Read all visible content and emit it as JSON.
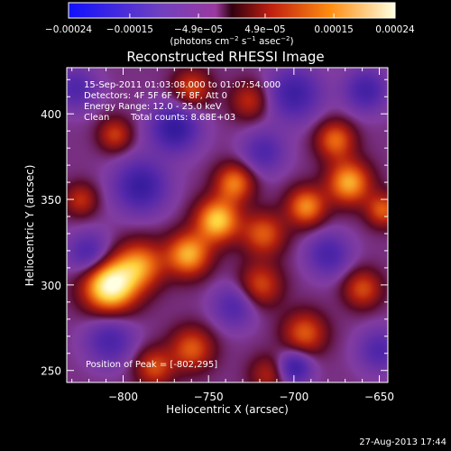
{
  "chart_data": {
    "type": "heatmap",
    "title": "Reconstructed RHESSI Image",
    "xlabel": "Heliocentric X (arcsec)",
    "ylabel": "Heliocentric Y (arcsec)",
    "xlim": [
      -833,
      -645
    ],
    "ylim": [
      243,
      427
    ],
    "xticks": [
      -800,
      -750,
      -700,
      -650
    ],
    "yticks": [
      250,
      300,
      350,
      400
    ],
    "xtick_labels": [
      "−800",
      "−750",
      "−700",
      "−650"
    ],
    "ytick_labels": [
      "250",
      "300",
      "350",
      "400"
    ],
    "colormap": [
      "#1a0a8c",
      "#5a2aa8",
      "#8a3a90",
      "#7a0a10",
      "#c0300c",
      "#f07010",
      "#ffd040",
      "#ffffe8"
    ],
    "colorbar": {
      "range": [
        -0.00024,
        0.00024
      ],
      "ticks": [
        -0.00024,
        -0.00015,
        -4.9e-05,
        4.9e-05,
        0.00015,
        0.00024
      ],
      "tick_labels": [
        "−0.00024",
        "−0.00015",
        "−4.9e−05",
        "4.9e−05",
        "0.00015",
        "0.00024"
      ],
      "unit_line1": "(photons cm",
      "unit_sup1": "−2",
      "unit_line2": " s",
      "unit_sup2": "−1",
      "unit_line3": " asec",
      "unit_sup3": "−2",
      "unit_line4": ")"
    },
    "peak_position": [
      -802,
      295
    ],
    "sources": [
      {
        "x": -808,
        "y": 300,
        "amp": 1.25,
        "sigma": 11
      },
      {
        "x": -790,
        "y": 312,
        "amp": 0.7,
        "sigma": 10
      },
      {
        "x": -762,
        "y": 318,
        "amp": 0.85,
        "sigma": 9
      },
      {
        "x": -745,
        "y": 338,
        "amp": 0.95,
        "sigma": 9
      },
      {
        "x": -735,
        "y": 360,
        "amp": 0.7,
        "sigma": 8
      },
      {
        "x": -718,
        "y": 330,
        "amp": 0.6,
        "sigma": 9
      },
      {
        "x": -693,
        "y": 346,
        "amp": 0.75,
        "sigma": 8
      },
      {
        "x": -668,
        "y": 360,
        "amp": 0.85,
        "sigma": 9
      },
      {
        "x": -648,
        "y": 344,
        "amp": 0.6,
        "sigma": 7
      },
      {
        "x": -676,
        "y": 385,
        "amp": 0.65,
        "sigma": 8
      },
      {
        "x": -720,
        "y": 300,
        "amp": 0.55,
        "sigma": 9
      },
      {
        "x": -694,
        "y": 272,
        "amp": 0.6,
        "sigma": 9
      },
      {
        "x": -760,
        "y": 263,
        "amp": 0.6,
        "sigma": 9
      },
      {
        "x": -782,
        "y": 252,
        "amp": 0.55,
        "sigma": 8
      },
      {
        "x": -715,
        "y": 248,
        "amp": 0.4,
        "sigma": 8
      },
      {
        "x": -660,
        "y": 298,
        "amp": 0.55,
        "sigma": 8
      },
      {
        "x": -760,
        "y": 415,
        "amp": 0.55,
        "sigma": 8
      },
      {
        "x": -726,
        "y": 408,
        "amp": 0.45,
        "sigma": 8
      },
      {
        "x": -805,
        "y": 388,
        "amp": 0.5,
        "sigma": 7
      },
      {
        "x": -825,
        "y": 350,
        "amp": 0.45,
        "sigma": 7
      },
      {
        "x": -790,
        "y": 358,
        "amp": -0.65,
        "sigma": 11
      },
      {
        "x": -820,
        "y": 318,
        "amp": -0.55,
        "sigma": 9
      },
      {
        "x": -770,
        "y": 392,
        "amp": -0.7,
        "sigma": 10
      },
      {
        "x": -700,
        "y": 412,
        "amp": -0.6,
        "sigma": 11
      },
      {
        "x": -718,
        "y": 378,
        "amp": -0.45,
        "sigma": 9
      },
      {
        "x": -658,
        "y": 414,
        "amp": -0.55,
        "sigma": 9
      },
      {
        "x": -808,
        "y": 268,
        "amp": -0.5,
        "sigma": 10
      },
      {
        "x": -735,
        "y": 288,
        "amp": -0.45,
        "sigma": 9
      },
      {
        "x": -680,
        "y": 318,
        "amp": -0.5,
        "sigma": 9
      },
      {
        "x": -700,
        "y": 252,
        "amp": -0.65,
        "sigma": 7
      },
      {
        "x": -650,
        "y": 262,
        "amp": -0.45,
        "sigma": 9
      },
      {
        "x": -828,
        "y": 415,
        "amp": -0.45,
        "sigma": 9
      }
    ]
  },
  "info": {
    "line1": "15-Sep-2011 01:03:08.000 to 01:07:54.000",
    "line2": "Detectors: 4F 5F 6F 7F 8F, Att 0",
    "line3": "Energy Range: 12.0 - 25.0 keV",
    "line4_a": "Clean",
    "line4_b": "Total counts: 8.68E+03"
  },
  "peak_label": "Position of Peak = [-802,295]",
  "footer_date": "27-Aug-2013 17:44"
}
